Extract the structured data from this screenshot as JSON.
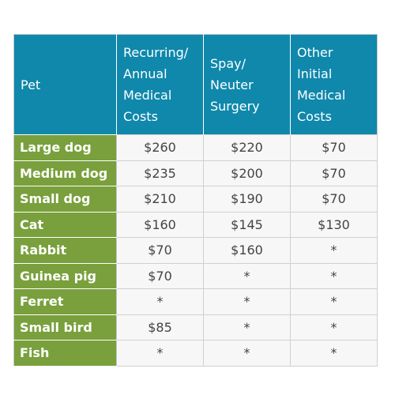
{
  "table": {
    "header": [
      [
        "Pet"
      ],
      [
        "Recurring/",
        "Annual",
        "Medical",
        "Costs"
      ],
      [
        "Spay/",
        "Neuter",
        "Surgery"
      ],
      [
        "Other",
        "Initial",
        "Medical",
        "Costs"
      ]
    ],
    "rows": [
      [
        "Large dog",
        "$260",
        "$220",
        "$70"
      ],
      [
        "Medium dog",
        "$235",
        "$200",
        "$70"
      ],
      [
        "Small dog",
        "$210",
        "$190",
        "$70"
      ],
      [
        "Cat",
        "$160",
        "$145",
        "$130"
      ],
      [
        "Rabbit",
        "$70",
        "$160",
        "*"
      ],
      [
        "Guinea pig",
        "$70",
        "*",
        "*"
      ],
      [
        "Ferret",
        "*",
        "*",
        "*"
      ],
      [
        "Small bird",
        "$85",
        "*",
        "*"
      ],
      [
        "Fish",
        "*",
        "*",
        "*"
      ]
    ]
  }
}
